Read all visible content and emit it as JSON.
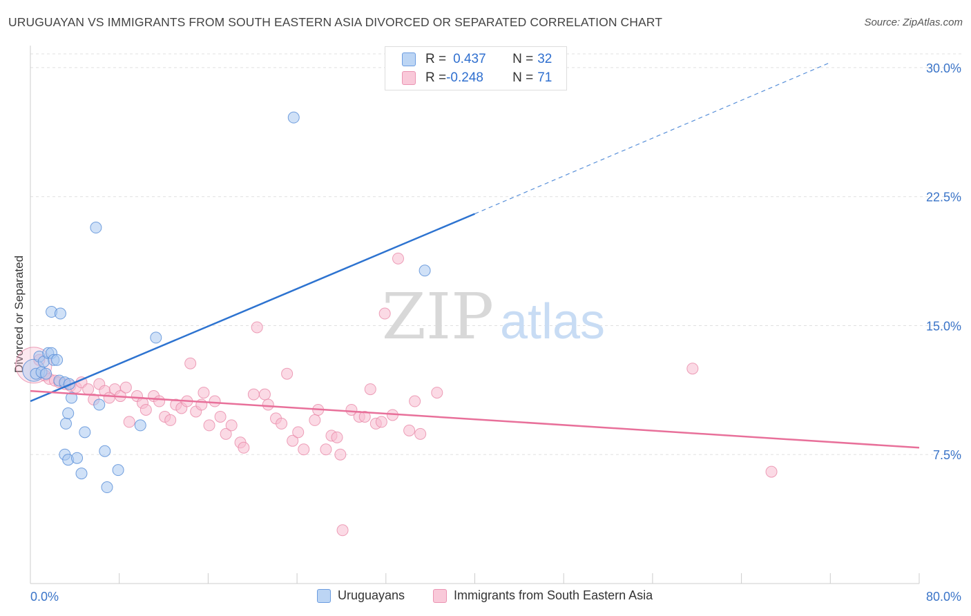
{
  "title": "URUGUAYAN VS IMMIGRANTS FROM SOUTH EASTERN ASIA DIVORCED OR SEPARATED CORRELATION CHART",
  "source": "Source: ZipAtlas.com",
  "watermark": {
    "zip": "ZIP",
    "atlas": "atlas"
  },
  "legend_top": {
    "rows": [
      {
        "r_label": "R = ",
        "r_value": "0.437",
        "n_label": "N = ",
        "n_value": "32"
      },
      {
        "r_label": "R = ",
        "r_value": "-0.248",
        "n_label": "N = ",
        "n_value": "71"
      }
    ]
  },
  "legend_bottom": [
    "Uruguayans",
    "Immigrants from South Eastern Asia"
  ],
  "colors": {
    "blue_fill": "#aac8f0",
    "blue_stroke": "#5a8fd8",
    "blue_line": "#2d73d0",
    "pink_fill": "#f7bcd0",
    "pink_stroke": "#e888a8",
    "pink_line": "#e8709a",
    "axis_text": "#3a74c8",
    "grid": "#e0e0e0"
  },
  "chart_data": {
    "type": "scatter",
    "title": "URUGUAYAN VS IMMIGRANTS FROM SOUTH EASTERN ASIA DIVORCED OR SEPARATED CORRELATION CHART",
    "xlabel": "",
    "ylabel": "Divorced or Separated",
    "xlim": [
      0,
      80
    ],
    "ylim": [
      0,
      30.8
    ],
    "x_tick_labels": [
      "0.0%",
      "80.0%"
    ],
    "y_ticks": [
      7.5,
      15.0,
      22.5,
      30.0
    ],
    "y_tick_labels": [
      "7.5%",
      "15.0%",
      "22.5%",
      "30.0%"
    ],
    "grid": true,
    "series": [
      {
        "name": "Uruguayans",
        "R": 0.437,
        "N": 32,
        "trend": {
          "x0": 0,
          "y0": 10.6,
          "x1": 40,
          "y1": 21.5,
          "x_dash_end": 72,
          "y_dash_end": 30.3
        },
        "points": [
          {
            "x": 0.3,
            "y": 12.4,
            "big": true
          },
          {
            "x": 0.5,
            "y": 12.2
          },
          {
            "x": 0.8,
            "y": 13.2
          },
          {
            "x": 1.0,
            "y": 12.3
          },
          {
            "x": 1.2,
            "y": 12.9
          },
          {
            "x": 1.4,
            "y": 12.2
          },
          {
            "x": 1.6,
            "y": 13.4
          },
          {
            "x": 1.9,
            "y": 13.4
          },
          {
            "x": 2.1,
            "y": 13.0
          },
          {
            "x": 2.4,
            "y": 13.0
          },
          {
            "x": 2.6,
            "y": 11.8
          },
          {
            "x": 1.9,
            "y": 15.8
          },
          {
            "x": 2.7,
            "y": 15.7
          },
          {
            "x": 3.1,
            "y": 11.7
          },
          {
            "x": 3.5,
            "y": 11.6
          },
          {
            "x": 3.1,
            "y": 7.5
          },
          {
            "x": 3.4,
            "y": 7.2
          },
          {
            "x": 3.2,
            "y": 9.3
          },
          {
            "x": 3.4,
            "y": 9.9
          },
          {
            "x": 3.7,
            "y": 10.8
          },
          {
            "x": 4.2,
            "y": 7.3
          },
          {
            "x": 4.6,
            "y": 6.4
          },
          {
            "x": 4.9,
            "y": 8.8
          },
          {
            "x": 5.9,
            "y": 20.7
          },
          {
            "x": 6.2,
            "y": 10.4
          },
          {
            "x": 6.7,
            "y": 7.7
          },
          {
            "x": 6.9,
            "y": 5.6
          },
          {
            "x": 7.9,
            "y": 6.6
          },
          {
            "x": 9.9,
            "y": 9.2
          },
          {
            "x": 11.3,
            "y": 14.3
          },
          {
            "x": 23.7,
            "y": 27.1
          },
          {
            "x": 35.5,
            "y": 18.2
          }
        ]
      },
      {
        "name": "Immigrants from South Eastern Asia",
        "R": -0.248,
        "N": 71,
        "trend": {
          "x0": 0,
          "y0": 11.2,
          "x1": 80,
          "y1": 7.9
        },
        "points": [
          {
            "x": 0.3,
            "y": 12.7,
            "big": true
          },
          {
            "x": 0.8,
            "y": 13.0
          },
          {
            "x": 1.3,
            "y": 12.1
          },
          {
            "x": 1.7,
            "y": 11.9
          },
          {
            "x": 2.2,
            "y": 11.8
          },
          {
            "x": 2.6,
            "y": 11.7
          },
          {
            "x": 3.1,
            "y": 11.6
          },
          {
            "x": 3.6,
            "y": 11.5
          },
          {
            "x": 4.1,
            "y": 11.4
          },
          {
            "x": 4.6,
            "y": 11.7
          },
          {
            "x": 5.2,
            "y": 11.3
          },
          {
            "x": 5.7,
            "y": 10.7
          },
          {
            "x": 6.2,
            "y": 11.6
          },
          {
            "x": 6.7,
            "y": 11.2
          },
          {
            "x": 7.1,
            "y": 10.8
          },
          {
            "x": 7.6,
            "y": 11.3
          },
          {
            "x": 8.1,
            "y": 10.9
          },
          {
            "x": 8.6,
            "y": 11.4
          },
          {
            "x": 8.9,
            "y": 9.4
          },
          {
            "x": 9.6,
            "y": 10.9
          },
          {
            "x": 10.1,
            "y": 10.5
          },
          {
            "x": 10.4,
            "y": 10.1
          },
          {
            "x": 11.1,
            "y": 10.9
          },
          {
            "x": 11.6,
            "y": 10.6
          },
          {
            "x": 12.1,
            "y": 9.7
          },
          {
            "x": 12.6,
            "y": 9.5
          },
          {
            "x": 13.1,
            "y": 10.4
          },
          {
            "x": 13.6,
            "y": 10.2
          },
          {
            "x": 14.1,
            "y": 10.6
          },
          {
            "x": 14.4,
            "y": 12.8
          },
          {
            "x": 14.9,
            "y": 10.0
          },
          {
            "x": 15.4,
            "y": 10.4
          },
          {
            "x": 15.6,
            "y": 11.1
          },
          {
            "x": 16.1,
            "y": 9.2
          },
          {
            "x": 16.6,
            "y": 10.6
          },
          {
            "x": 17.1,
            "y": 9.7
          },
          {
            "x": 17.6,
            "y": 8.7
          },
          {
            "x": 18.1,
            "y": 9.2
          },
          {
            "x": 18.9,
            "y": 8.2
          },
          {
            "x": 19.2,
            "y": 7.9
          },
          {
            "x": 20.1,
            "y": 11.0
          },
          {
            "x": 20.4,
            "y": 14.9
          },
          {
            "x": 21.1,
            "y": 11.0
          },
          {
            "x": 21.4,
            "y": 10.4
          },
          {
            "x": 22.1,
            "y": 9.6
          },
          {
            "x": 22.6,
            "y": 9.3
          },
          {
            "x": 23.1,
            "y": 12.2
          },
          {
            "x": 23.6,
            "y": 8.3
          },
          {
            "x": 24.1,
            "y": 8.8
          },
          {
            "x": 24.6,
            "y": 7.8
          },
          {
            "x": 25.6,
            "y": 9.5
          },
          {
            "x": 25.9,
            "y": 10.1
          },
          {
            "x": 26.6,
            "y": 7.8
          },
          {
            "x": 27.1,
            "y": 8.6
          },
          {
            "x": 27.6,
            "y": 8.5
          },
          {
            "x": 27.9,
            "y": 7.5
          },
          {
            "x": 28.1,
            "y": 3.1
          },
          {
            "x": 28.9,
            "y": 10.1
          },
          {
            "x": 29.6,
            "y": 9.7
          },
          {
            "x": 30.1,
            "y": 9.7
          },
          {
            "x": 30.6,
            "y": 11.3
          },
          {
            "x": 31.1,
            "y": 9.3
          },
          {
            "x": 31.6,
            "y": 9.4
          },
          {
            "x": 31.9,
            "y": 15.7
          },
          {
            "x": 32.6,
            "y": 9.8
          },
          {
            "x": 33.1,
            "y": 18.9
          },
          {
            "x": 34.1,
            "y": 8.9
          },
          {
            "x": 34.6,
            "y": 10.6
          },
          {
            "x": 35.1,
            "y": 8.7
          },
          {
            "x": 36.6,
            "y": 11.1
          },
          {
            "x": 59.6,
            "y": 12.5
          },
          {
            "x": 66.7,
            "y": 6.5
          }
        ]
      }
    ]
  }
}
